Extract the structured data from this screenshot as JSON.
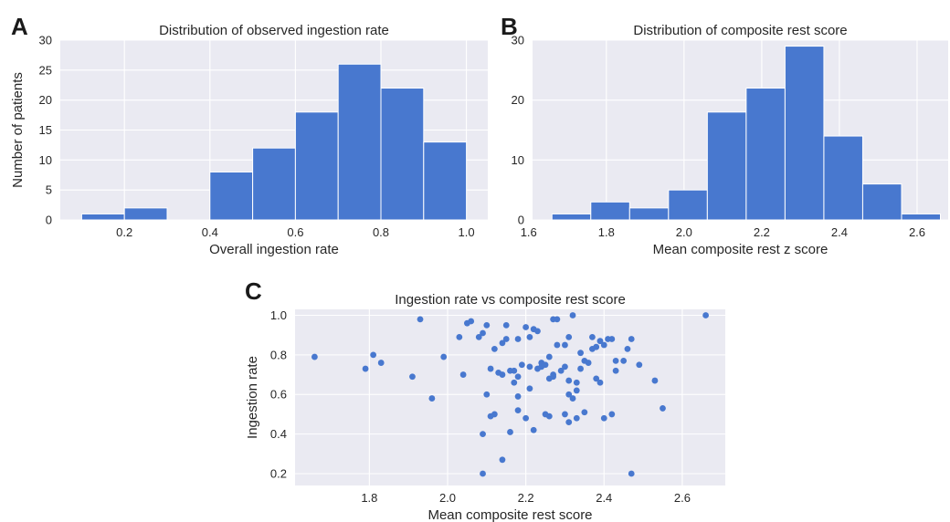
{
  "chart_data": [
    {
      "panel": "A",
      "type": "bar",
      "title": "Distribution of observed ingestion rate",
      "xlabel": "Overall ingestion rate",
      "ylabel": "Number of patients",
      "bin_edges": [
        0.1,
        0.2,
        0.3,
        0.4,
        0.5,
        0.6,
        0.7,
        0.8,
        0.9,
        1.0
      ],
      "values": [
        1,
        2,
        0,
        8,
        12,
        18,
        26,
        22,
        13
      ],
      "xlim": [
        0.05,
        1.05
      ],
      "ylim": [
        0,
        30
      ],
      "xticks": [
        0.2,
        0.4,
        0.6,
        0.8,
        1.0
      ],
      "xtick_labels": [
        "0.2",
        "0.4",
        "0.6",
        "0.8",
        "1.0"
      ],
      "yticks": [
        0,
        5,
        10,
        15,
        20,
        25,
        30
      ],
      "ytick_labels": [
        "0",
        "5",
        "10",
        "15",
        "20",
        "25",
        "30"
      ],
      "grid": true
    },
    {
      "panel": "B",
      "type": "bar",
      "title": "Distribution of composite rest score",
      "xlabel": "Mean composite rest z score",
      "ylabel": "",
      "bin_edges": [
        1.66,
        1.76,
        1.86,
        1.96,
        2.06,
        2.16,
        2.26,
        2.36,
        2.46,
        2.56,
        2.66
      ],
      "values": [
        1,
        3,
        2,
        5,
        18,
        22,
        29,
        14,
        6,
        1
      ],
      "xlim": [
        1.61,
        2.68
      ],
      "ylim": [
        0,
        30
      ],
      "xticks": [
        1.6,
        1.8,
        2.0,
        2.2,
        2.4,
        2.6
      ],
      "xtick_labels": [
        "1.6",
        "1.8",
        "2.0",
        "2.2",
        "2.4",
        "2.6"
      ],
      "yticks": [
        0,
        10,
        20,
        30
      ],
      "ytick_labels": [
        "0",
        "10",
        "20",
        "30"
      ],
      "grid": true
    },
    {
      "panel": "C",
      "type": "scatter",
      "title": "Ingestion rate vs composite rest score",
      "xlabel": "Mean composite rest score",
      "ylabel": "Ingestion rate",
      "xlim": [
        1.61,
        2.71
      ],
      "ylim": [
        0.14,
        1.03
      ],
      "xticks": [
        1.8,
        2.0,
        2.2,
        2.4,
        2.6
      ],
      "xtick_labels": [
        "1.8",
        "2.0",
        "2.2",
        "2.4",
        "2.6"
      ],
      "yticks": [
        0.2,
        0.4,
        0.6,
        0.8,
        1.0
      ],
      "ytick_labels": [
        "0.2",
        "0.4",
        "0.6",
        "0.8",
        "1.0"
      ],
      "grid": true,
      "points": [
        [
          1.66,
          0.79
        ],
        [
          1.79,
          0.73
        ],
        [
          1.81,
          0.8
        ],
        [
          1.83,
          0.76
        ],
        [
          1.91,
          0.69
        ],
        [
          1.93,
          0.98
        ],
        [
          1.96,
          0.58
        ],
        [
          1.99,
          0.79
        ],
        [
          2.03,
          0.89
        ],
        [
          2.04,
          0.7
        ],
        [
          2.05,
          0.96
        ],
        [
          2.06,
          0.97
        ],
        [
          2.08,
          0.89
        ],
        [
          2.09,
          0.91
        ],
        [
          2.09,
          0.4
        ],
        [
          2.09,
          0.2
        ],
        [
          2.1,
          0.95
        ],
        [
          2.1,
          0.6
        ],
        [
          2.11,
          0.73
        ],
        [
          2.11,
          0.49
        ],
        [
          2.12,
          0.5
        ],
        [
          2.12,
          0.83
        ],
        [
          2.13,
          0.71
        ],
        [
          2.14,
          0.7
        ],
        [
          2.14,
          0.27
        ],
        [
          2.14,
          0.86
        ],
        [
          2.15,
          0.95
        ],
        [
          2.15,
          0.88
        ],
        [
          2.16,
          0.41
        ],
        [
          2.16,
          0.72
        ],
        [
          2.17,
          0.72
        ],
        [
          2.17,
          0.66
        ],
        [
          2.18,
          0.69
        ],
        [
          2.18,
          0.88
        ],
        [
          2.18,
          0.59
        ],
        [
          2.18,
          0.52
        ],
        [
          2.19,
          0.75
        ],
        [
          2.2,
          0.94
        ],
        [
          2.2,
          0.48
        ],
        [
          2.21,
          0.63
        ],
        [
          2.21,
          0.74
        ],
        [
          2.21,
          0.89
        ],
        [
          2.22,
          0.42
        ],
        [
          2.22,
          0.93
        ],
        [
          2.23,
          0.92
        ],
        [
          2.23,
          0.73
        ],
        [
          2.24,
          0.76
        ],
        [
          2.24,
          0.74
        ],
        [
          2.25,
          0.5
        ],
        [
          2.25,
          0.75
        ],
        [
          2.26,
          0.79
        ],
        [
          2.26,
          0.68
        ],
        [
          2.26,
          0.49
        ],
        [
          2.27,
          0.7
        ],
        [
          2.27,
          0.69
        ],
        [
          2.27,
          0.98
        ],
        [
          2.28,
          0.85
        ],
        [
          2.28,
          0.98
        ],
        [
          2.29,
          0.72
        ],
        [
          2.3,
          0.74
        ],
        [
          2.3,
          0.85
        ],
        [
          2.3,
          0.5
        ],
        [
          2.31,
          0.67
        ],
        [
          2.31,
          0.6
        ],
        [
          2.31,
          0.46
        ],
        [
          2.31,
          0.89
        ],
        [
          2.32,
          0.58
        ],
        [
          2.32,
          1.0
        ],
        [
          2.33,
          0.66
        ],
        [
          2.33,
          0.62
        ],
        [
          2.33,
          0.48
        ],
        [
          2.34,
          0.81
        ],
        [
          2.34,
          0.73
        ],
        [
          2.35,
          0.51
        ],
        [
          2.35,
          0.77
        ],
        [
          2.36,
          0.76
        ],
        [
          2.37,
          0.83
        ],
        [
          2.37,
          0.89
        ],
        [
          2.38,
          0.68
        ],
        [
          2.38,
          0.84
        ],
        [
          2.39,
          0.66
        ],
        [
          2.39,
          0.87
        ],
        [
          2.4,
          0.48
        ],
        [
          2.4,
          0.85
        ],
        [
          2.41,
          0.88
        ],
        [
          2.42,
          0.5
        ],
        [
          2.42,
          0.88
        ],
        [
          2.43,
          0.72
        ],
        [
          2.43,
          0.77
        ],
        [
          2.45,
          0.77
        ],
        [
          2.46,
          0.83
        ],
        [
          2.47,
          0.2
        ],
        [
          2.47,
          0.88
        ],
        [
          2.49,
          0.75
        ],
        [
          2.53,
          0.67
        ],
        [
          2.55,
          0.53
        ],
        [
          2.66,
          1.0
        ]
      ]
    }
  ]
}
